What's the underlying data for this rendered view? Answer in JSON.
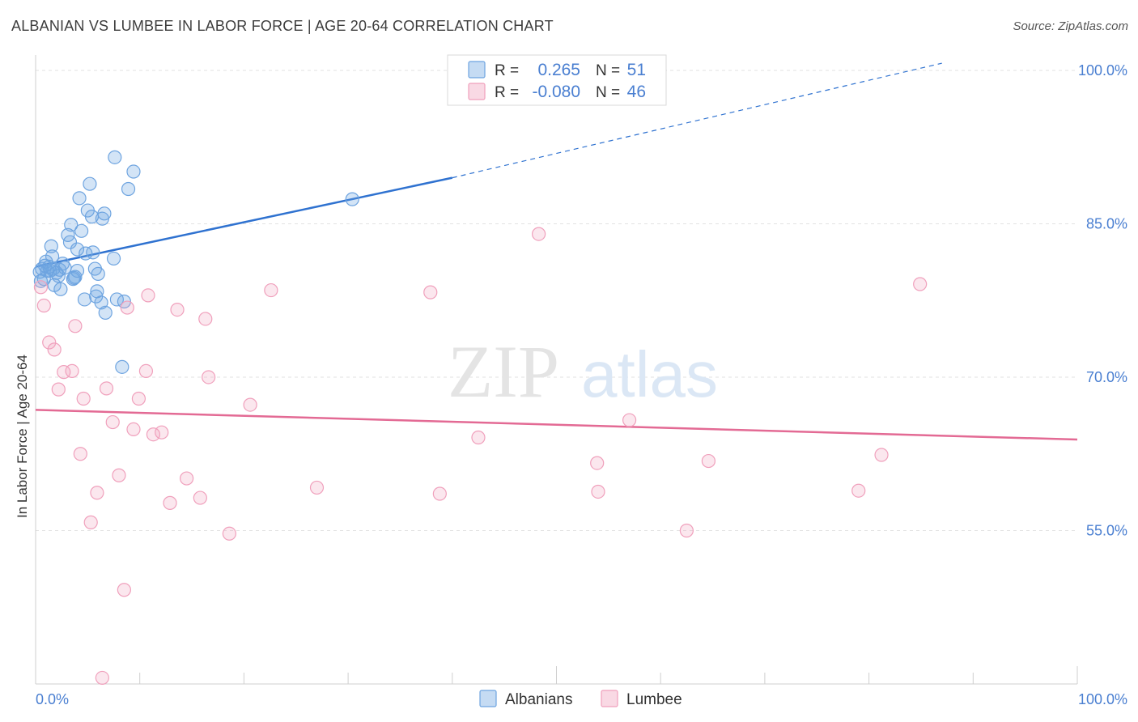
{
  "header": {
    "title": "ALBANIAN VS LUMBEE IN LABOR FORCE | AGE 20-64 CORRELATION CHART",
    "source": "Source: ZipAtlas.com"
  },
  "watermark": {
    "zip": "ZIP",
    "atlas": "atlas"
  },
  "chart_data": {
    "type": "scatter",
    "title": "ALBANIAN VS LUMBEE IN LABOR FORCE | AGE 20-64 CORRELATION CHART",
    "xlabel": "",
    "ylabel": "In Labor Force | Age 20-64",
    "xlim": [
      0,
      100
    ],
    "ylim": [
      40.0,
      101.5
    ],
    "x_tick_labels": [
      "0.0%",
      "100.0%"
    ],
    "y_ticks": [
      55.0,
      70.0,
      85.0,
      100.0
    ],
    "y_tick_labels": [
      "55.0%",
      "70.0%",
      "85.0%",
      "100.0%"
    ],
    "grid": "horizontal dashed",
    "legend_position": "top-center",
    "colors": {
      "albanians": "#6ea4e0",
      "lumbee": "#f0a0bc",
      "albanians_line": "#2f72d0",
      "lumbee_line": "#e36a94",
      "tick_label": "#4a7fd1"
    },
    "stats": [
      {
        "r_label": "R =",
        "r": "0.265",
        "n_label": "N =",
        "n": "51"
      },
      {
        "r_label": "R =",
        "r": "-0.080",
        "n_label": "N =",
        "n": "46"
      }
    ],
    "series": [
      {
        "name": "Albanians",
        "trendline": {
          "x": [
            0,
            40
          ],
          "y": [
            80.8,
            89.5
          ],
          "extended_x": [
            40,
            87
          ],
          "extended_y": [
            89.5,
            100.7
          ]
        },
        "points": [
          [
            0.4,
            80.3
          ],
          [
            0.5,
            79.4
          ],
          [
            0.6,
            80.6
          ],
          [
            0.8,
            79.6
          ],
          [
            0.9,
            80.9
          ],
          [
            1.0,
            81.3
          ],
          [
            1.1,
            80.4
          ],
          [
            1.3,
            80.8
          ],
          [
            1.5,
            82.8
          ],
          [
            1.6,
            81.8
          ],
          [
            1.7,
            80.6
          ],
          [
            1.8,
            79.0
          ],
          [
            2.0,
            80.2
          ],
          [
            2.2,
            79.9
          ],
          [
            2.4,
            78.6
          ],
          [
            2.6,
            81.1
          ],
          [
            2.8,
            80.7
          ],
          [
            3.1,
            83.9
          ],
          [
            3.4,
            84.9
          ],
          [
            3.3,
            83.2
          ],
          [
            3.6,
            79.6
          ],
          [
            3.8,
            79.8
          ],
          [
            4.0,
            80.4
          ],
          [
            4.2,
            87.5
          ],
          [
            4.0,
            82.5
          ],
          [
            4.4,
            84.3
          ],
          [
            4.7,
            77.6
          ],
          [
            4.8,
            82.1
          ],
          [
            5.0,
            86.3
          ],
          [
            5.2,
            88.9
          ],
          [
            5.4,
            85.7
          ],
          [
            5.5,
            82.2
          ],
          [
            5.7,
            80.6
          ],
          [
            5.8,
            77.9
          ],
          [
            5.9,
            78.4
          ],
          [
            6.0,
            80.1
          ],
          [
            6.3,
            77.3
          ],
          [
            6.4,
            85.5
          ],
          [
            6.6,
            86.0
          ],
          [
            6.7,
            76.3
          ],
          [
            7.5,
            81.6
          ],
          [
            7.6,
            91.5
          ],
          [
            7.8,
            77.6
          ],
          [
            8.3,
            71.0
          ],
          [
            8.5,
            77.4
          ],
          [
            8.9,
            88.4
          ],
          [
            9.4,
            90.1
          ],
          [
            30.4,
            87.4
          ],
          [
            1.4,
            80.4
          ],
          [
            2.3,
            80.5
          ],
          [
            3.7,
            79.7
          ]
        ]
      },
      {
        "name": "Lumbee",
        "trendline": {
          "x": [
            0,
            100
          ],
          "y": [
            66.8,
            63.9
          ]
        },
        "points": [
          [
            0.5,
            78.8
          ],
          [
            0.8,
            77.0
          ],
          [
            1.3,
            73.4
          ],
          [
            1.8,
            72.7
          ],
          [
            2.2,
            68.8
          ],
          [
            2.7,
            70.5
          ],
          [
            3.5,
            70.6
          ],
          [
            3.8,
            75.0
          ],
          [
            4.3,
            62.5
          ],
          [
            4.6,
            67.9
          ],
          [
            5.3,
            55.8
          ],
          [
            5.9,
            58.7
          ],
          [
            6.4,
            40.6
          ],
          [
            6.8,
            68.9
          ],
          [
            7.4,
            65.6
          ],
          [
            8.0,
            60.4
          ],
          [
            8.5,
            49.2
          ],
          [
            8.8,
            76.8
          ],
          [
            9.4,
            64.9
          ],
          [
            9.9,
            67.9
          ],
          [
            10.6,
            70.6
          ],
          [
            10.8,
            78.0
          ],
          [
            11.3,
            64.4
          ],
          [
            12.1,
            64.6
          ],
          [
            12.9,
            57.7
          ],
          [
            13.6,
            76.6
          ],
          [
            14.5,
            60.1
          ],
          [
            15.8,
            58.2
          ],
          [
            16.3,
            75.7
          ],
          [
            16.6,
            70.0
          ],
          [
            18.6,
            54.7
          ],
          [
            20.6,
            67.3
          ],
          [
            22.6,
            78.5
          ],
          [
            27.0,
            59.2
          ],
          [
            37.9,
            78.3
          ],
          [
            38.8,
            58.6
          ],
          [
            42.5,
            64.1
          ],
          [
            48.3,
            84.0
          ],
          [
            53.9,
            61.6
          ],
          [
            54.0,
            58.8
          ],
          [
            57.0,
            65.8
          ],
          [
            62.5,
            55.0
          ],
          [
            64.6,
            61.8
          ],
          [
            79.0,
            58.9
          ],
          [
            81.2,
            62.4
          ],
          [
            84.9,
            79.1
          ]
        ]
      }
    ]
  }
}
